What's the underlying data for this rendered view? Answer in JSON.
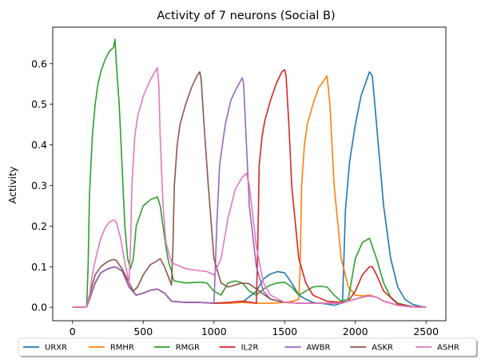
{
  "chart_data": {
    "type": "line",
    "title": "Activity of 7 neurons (Social B)",
    "xlabel": "",
    "ylabel": "Activity",
    "xlim": [
      -140,
      2640
    ],
    "ylim": [
      -0.033,
      0.69
    ],
    "xticks": [
      0,
      500,
      1000,
      1500,
      2000,
      2500
    ],
    "yticks": [
      0.0,
      0.1,
      0.2,
      0.3,
      0.4,
      0.5,
      0.6
    ],
    "ytick_labels": [
      "0.0",
      "0.1",
      "0.2",
      "0.3",
      "0.4",
      "0.5",
      "0.6"
    ],
    "grid": false,
    "legend": {
      "placement": "bottom-outside",
      "columns": 7
    },
    "series": [
      {
        "name": "URXR",
        "color": "#1f77b4",
        "x": [
          0,
          100,
          120,
          160,
          200,
          250,
          300,
          350,
          400,
          450,
          500,
          550,
          600,
          650,
          700,
          800,
          900,
          1000,
          1100,
          1200,
          1300,
          1350,
          1400,
          1450,
          1500,
          1550,
          1600,
          1650,
          1700,
          1750,
          1800,
          1850,
          1900,
          1910,
          1930,
          1960,
          2000,
          2040,
          2080,
          2100,
          2120,
          2150,
          2200,
          2250,
          2300,
          2350,
          2400,
          2450,
          2500
        ],
        "y": [
          0.0,
          0.001,
          0.02,
          0.06,
          0.085,
          0.095,
          0.1,
          0.09,
          0.05,
          0.03,
          0.035,
          0.042,
          0.045,
          0.035,
          0.015,
          0.012,
          0.012,
          0.01,
          0.01,
          0.012,
          0.04,
          0.07,
          0.082,
          0.088,
          0.085,
          0.06,
          0.03,
          0.02,
          0.012,
          0.01,
          0.008,
          0.005,
          0.01,
          0.02,
          0.24,
          0.36,
          0.45,
          0.52,
          0.56,
          0.58,
          0.57,
          0.45,
          0.25,
          0.12,
          0.05,
          0.02,
          0.008,
          0.003,
          0.0
        ]
      },
      {
        "name": "RMHR",
        "color": "#ff7f0e",
        "x": [
          0,
          100,
          120,
          160,
          200,
          250,
          300,
          350,
          400,
          450,
          500,
          550,
          600,
          650,
          700,
          800,
          900,
          1000,
          1100,
          1200,
          1300,
          1400,
          1500,
          1560,
          1600,
          1610,
          1620,
          1640,
          1660,
          1700,
          1740,
          1780,
          1800,
          1820,
          1850,
          1900,
          1950,
          2000,
          2050,
          2100,
          2150,
          2200,
          2300,
          2400,
          2500
        ],
        "y": [
          0.0,
          0.001,
          0.02,
          0.06,
          0.085,
          0.095,
          0.1,
          0.09,
          0.05,
          0.03,
          0.035,
          0.042,
          0.045,
          0.035,
          0.015,
          0.012,
          0.012,
          0.01,
          0.01,
          0.012,
          0.01,
          0.01,
          0.012,
          0.015,
          0.02,
          0.1,
          0.3,
          0.4,
          0.45,
          0.5,
          0.54,
          0.56,
          0.57,
          0.5,
          0.3,
          0.12,
          0.05,
          0.03,
          0.028,
          0.03,
          0.025,
          0.015,
          0.005,
          0.002,
          0.0
        ]
      },
      {
        "name": "RMGR",
        "color": "#2ca02c",
        "x": [
          0,
          100,
          110,
          120,
          140,
          160,
          180,
          200,
          230,
          260,
          290,
          300,
          310,
          330,
          350,
          370,
          390,
          410,
          430,
          450,
          500,
          550,
          600,
          620,
          640,
          660,
          680,
          700,
          710,
          720,
          800,
          900,
          950,
          1000,
          1050,
          1100,
          1150,
          1200,
          1250,
          1300,
          1350,
          1400,
          1450,
          1500,
          1550,
          1600,
          1650,
          1700,
          1750,
          1800,
          1850,
          1900,
          1950,
          2000,
          2050,
          2100,
          2150,
          2200,
          2250,
          2300,
          2400,
          2500
        ],
        "y": [
          0.0,
          0.001,
          0.1,
          0.28,
          0.42,
          0.5,
          0.55,
          0.58,
          0.61,
          0.63,
          0.64,
          0.66,
          0.6,
          0.5,
          0.35,
          0.2,
          0.12,
          0.095,
          0.12,
          0.2,
          0.25,
          0.265,
          0.272,
          0.25,
          0.2,
          0.15,
          0.11,
          0.09,
          0.07,
          0.065,
          0.06,
          0.062,
          0.06,
          0.04,
          0.03,
          0.06,
          0.065,
          0.06,
          0.04,
          0.03,
          0.045,
          0.055,
          0.06,
          0.062,
          0.05,
          0.03,
          0.04,
          0.05,
          0.052,
          0.05,
          0.03,
          0.015,
          0.02,
          0.12,
          0.16,
          0.17,
          0.12,
          0.06,
          0.025,
          0.01,
          0.002,
          0.0
        ]
      },
      {
        "name": "IL2R",
        "color": "#d62728",
        "x": [
          0,
          100,
          120,
          160,
          200,
          250,
          300,
          350,
          400,
          450,
          500,
          550,
          600,
          650,
          700,
          800,
          900,
          1000,
          1100,
          1200,
          1250,
          1300,
          1310,
          1320,
          1340,
          1360,
          1400,
          1440,
          1480,
          1500,
          1510,
          1530,
          1550,
          1600,
          1650,
          1700,
          1800,
          1900,
          1950,
          2000,
          2050,
          2100,
          2120,
          2150,
          2200,
          2300,
          2400,
          2500
        ],
        "y": [
          0.0,
          0.001,
          0.02,
          0.06,
          0.085,
          0.095,
          0.1,
          0.09,
          0.05,
          0.03,
          0.035,
          0.042,
          0.045,
          0.035,
          0.015,
          0.012,
          0.012,
          0.01,
          0.012,
          0.015,
          0.013,
          0.01,
          0.15,
          0.35,
          0.42,
          0.46,
          0.51,
          0.55,
          0.58,
          0.585,
          0.57,
          0.45,
          0.3,
          0.12,
          0.06,
          0.03,
          0.015,
          0.012,
          0.015,
          0.04,
          0.08,
          0.1,
          0.1,
          0.08,
          0.04,
          0.008,
          0.002,
          0.0
        ]
      },
      {
        "name": "AWBR",
        "color": "#9467bd",
        "x": [
          0,
          100,
          120,
          160,
          200,
          250,
          300,
          350,
          400,
          450,
          500,
          550,
          600,
          650,
          700,
          800,
          900,
          950,
          1000,
          1010,
          1020,
          1040,
          1080,
          1120,
          1160,
          1200,
          1210,
          1230,
          1250,
          1300,
          1350,
          1400,
          1500,
          1600,
          1700,
          1800,
          1900,
          2000,
          2050,
          2100,
          2150,
          2200,
          2300,
          2400,
          2500
        ],
        "y": [
          0.0,
          0.001,
          0.02,
          0.06,
          0.085,
          0.095,
          0.1,
          0.09,
          0.05,
          0.03,
          0.035,
          0.042,
          0.045,
          0.035,
          0.015,
          0.012,
          0.012,
          0.011,
          0.01,
          0.1,
          0.2,
          0.35,
          0.45,
          0.51,
          0.54,
          0.565,
          0.55,
          0.4,
          0.25,
          0.1,
          0.04,
          0.02,
          0.012,
          0.01,
          0.01,
          0.01,
          0.01,
          0.02,
          0.025,
          0.028,
          0.025,
          0.015,
          0.005,
          0.001,
          0.0
        ]
      },
      {
        "name": "ASKR",
        "color": "#8c564b",
        "x": [
          0,
          100,
          120,
          160,
          200,
          250,
          290,
          310,
          350,
          400,
          430,
          460,
          500,
          550,
          600,
          620,
          650,
          700,
          710,
          720,
          740,
          760,
          800,
          840,
          880,
          900,
          910,
          930,
          960,
          1000,
          1050,
          1100,
          1150,
          1200,
          1250,
          1300,
          1400,
          1500,
          1600,
          1700,
          1800,
          1900,
          2000,
          2050,
          2100,
          2150,
          2200,
          2300,
          2400,
          2500
        ],
        "y": [
          0.0,
          0.001,
          0.03,
          0.08,
          0.1,
          0.113,
          0.118,
          0.115,
          0.095,
          0.06,
          0.04,
          0.05,
          0.08,
          0.105,
          0.115,
          0.12,
          0.1,
          0.055,
          0.15,
          0.3,
          0.4,
          0.45,
          0.5,
          0.54,
          0.57,
          0.58,
          0.56,
          0.45,
          0.3,
          0.12,
          0.06,
          0.05,
          0.055,
          0.06,
          0.058,
          0.045,
          0.02,
          0.012,
          0.01,
          0.01,
          0.01,
          0.01,
          0.02,
          0.025,
          0.028,
          0.025,
          0.015,
          0.005,
          0.001,
          0.0
        ]
      },
      {
        "name": "ASHR",
        "color": "#e377c2",
        "x": [
          0,
          100,
          120,
          140,
          170,
          200,
          230,
          260,
          290,
          310,
          340,
          370,
          400,
          410,
          420,
          440,
          460,
          500,
          550,
          600,
          610,
          620,
          640,
          660,
          700,
          800,
          900,
          950,
          1000,
          1050,
          1100,
          1150,
          1200,
          1230,
          1250,
          1300,
          1350,
          1400,
          1500,
          1600,
          1700,
          1800,
          1900,
          2000,
          2050,
          2100,
          2150,
          2200,
          2300,
          2400,
          2500
        ],
        "y": [
          0.0,
          0.001,
          0.03,
          0.08,
          0.13,
          0.17,
          0.195,
          0.21,
          0.215,
          0.21,
          0.17,
          0.11,
          0.06,
          0.15,
          0.3,
          0.42,
          0.47,
          0.52,
          0.56,
          0.59,
          0.55,
          0.42,
          0.25,
          0.16,
          0.11,
          0.095,
          0.09,
          0.088,
          0.08,
          0.12,
          0.22,
          0.29,
          0.32,
          0.33,
          0.3,
          0.15,
          0.06,
          0.03,
          0.012,
          0.01,
          0.01,
          0.01,
          0.01,
          0.02,
          0.025,
          0.028,
          0.025,
          0.015,
          0.005,
          0.001,
          0.0
        ]
      }
    ]
  }
}
